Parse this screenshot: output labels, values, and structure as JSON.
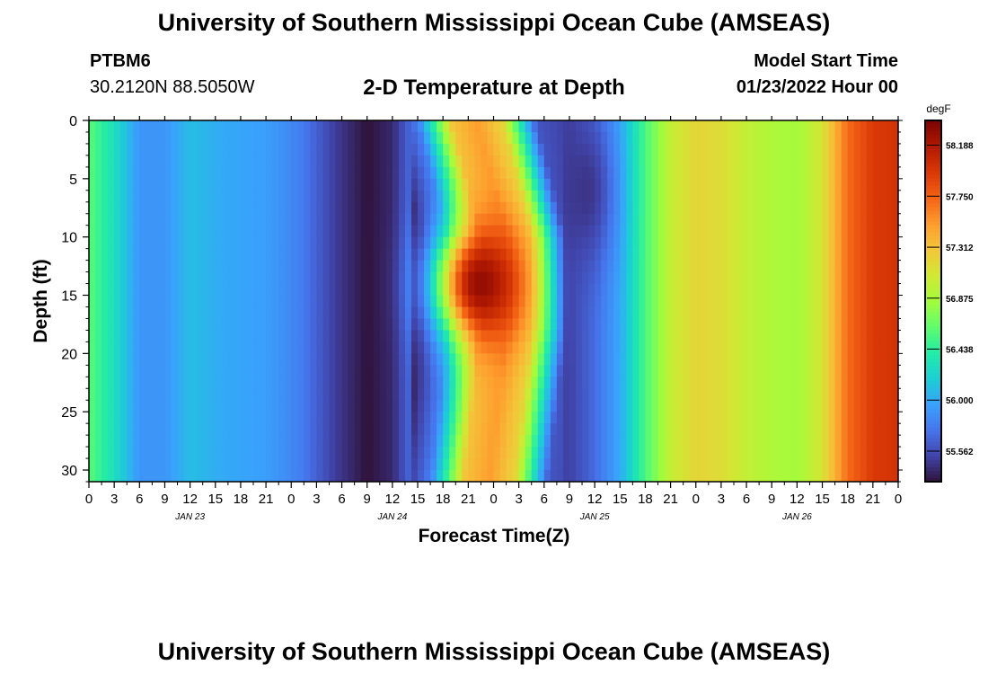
{
  "page": {
    "title": "University of Southern Mississippi Ocean Cube (AMSEAS)",
    "station_id": "PTBM6",
    "coordinates": "30.2120N  88.5050W",
    "subtitle": "2-D Temperature at Depth",
    "model_start_label": "Model Start Time",
    "model_start_value": "01/23/2022 Hour 00",
    "footer_title": "University of Southern Mississippi Ocean Cube (AMSEAS)"
  },
  "chart_data": {
    "type": "heatmap",
    "title": "2-D Temperature at Depth",
    "xlabel": "Forecast Time(Z)",
    "ylabel": "Depth (ft)",
    "x_tick_labels": [
      "0",
      "3",
      "6",
      "9",
      "12",
      "15",
      "18",
      "21",
      "0",
      "3",
      "6",
      "9",
      "12",
      "15",
      "18",
      "21",
      "0",
      "3",
      "6",
      "9",
      "12",
      "15",
      "18",
      "21",
      "0",
      "3",
      "6",
      "9",
      "12",
      "15",
      "18",
      "21",
      "0"
    ],
    "x_hours": [
      0,
      96
    ],
    "day_labels": [
      {
        "hour": 12,
        "label": "JAN 23"
      },
      {
        "hour": 36,
        "label": "JAN 24"
      },
      {
        "hour": 60,
        "label": "JAN 25"
      },
      {
        "hour": 84,
        "label": "JAN 26"
      }
    ],
    "y_ticks": [
      0,
      5,
      10,
      15,
      20,
      25,
      30
    ],
    "ylim": [
      0,
      31
    ],
    "colorbar": {
      "unit": "degF",
      "min": 55.3,
      "max": 58.4,
      "ticks": [
        "58.188",
        "57.750",
        "57.312",
        "56.875",
        "56.438",
        "56.000",
        "55.562"
      ]
    },
    "colormap": [
      "#30123b",
      "#4145ab",
      "#4675ed",
      "#39a2fc",
      "#1bcfd4",
      "#24eca6",
      "#61fc6c",
      "#a4fc3b",
      "#d1e834",
      "#f3c63a",
      "#fe9b2d",
      "#f36315",
      "#d93806",
      "#b11901",
      "#7a0403"
    ],
    "surface_temperature_by_hour": [
      {
        "hour": 0,
        "temp": 56.6
      },
      {
        "hour": 3,
        "temp": 56.3
      },
      {
        "hour": 6,
        "temp": 55.9
      },
      {
        "hour": 9,
        "temp": 55.9
      },
      {
        "hour": 12,
        "temp": 56.1
      },
      {
        "hour": 16,
        "temp": 56.0
      },
      {
        "hour": 21,
        "temp": 55.95
      },
      {
        "hour": 25,
        "temp": 55.8
      },
      {
        "hour": 29,
        "temp": 55.5
      },
      {
        "hour": 33,
        "temp": 55.3
      },
      {
        "hour": 36,
        "temp": 55.4
      },
      {
        "hour": 39,
        "temp": 55.8
      },
      {
        "hour": 41,
        "temp": 56.5
      },
      {
        "hour": 43,
        "temp": 57.3
      },
      {
        "hour": 46,
        "temp": 57.5
      },
      {
        "hour": 49,
        "temp": 57.2
      },
      {
        "hour": 51,
        "temp": 56.4
      },
      {
        "hour": 53,
        "temp": 55.6
      },
      {
        "hour": 57,
        "temp": 55.5
      },
      {
        "hour": 60,
        "temp": 55.7
      },
      {
        "hour": 63,
        "temp": 56.0
      },
      {
        "hour": 66,
        "temp": 56.55
      },
      {
        "hour": 69,
        "temp": 57.0
      },
      {
        "hour": 72,
        "temp": 57.2
      },
      {
        "hour": 75,
        "temp": 57.15
      },
      {
        "hour": 78,
        "temp": 57.0
      },
      {
        "hour": 81,
        "temp": 56.9
      },
      {
        "hour": 84,
        "temp": 56.85
      },
      {
        "hour": 87,
        "temp": 57.1
      },
      {
        "hour": 90,
        "temp": 57.7
      },
      {
        "hour": 93,
        "temp": 57.95
      },
      {
        "hour": 96,
        "temp": 58.0
      }
    ],
    "warm_core": {
      "hour": 46.5,
      "depth_ft": 14,
      "temp": 58.3
    },
    "cold_core": {
      "hour": 59,
      "depth_ft": 6,
      "temp": 55.45
    }
  }
}
